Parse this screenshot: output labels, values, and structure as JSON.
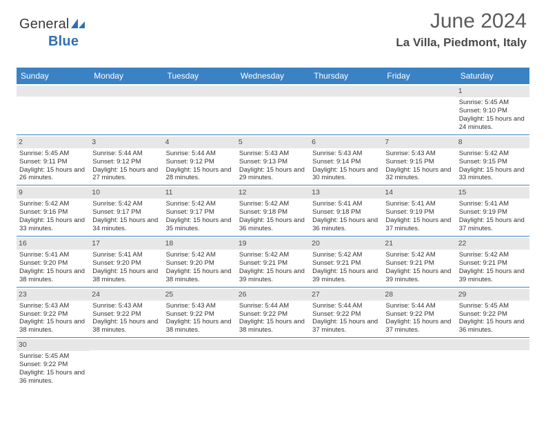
{
  "logo": {
    "textA": "General",
    "textB": "Blue"
  },
  "title": "June 2024",
  "location": "La Villa, Piedmont, Italy",
  "colors": {
    "headerBlue": "#3a82c4",
    "greyBar": "#e7e7e7",
    "text": "#333333",
    "titleGrey": "#5a5a5a"
  },
  "dayNames": [
    "Sunday",
    "Monday",
    "Tuesday",
    "Wednesday",
    "Thursday",
    "Friday",
    "Saturday"
  ],
  "weeks": [
    [
      null,
      null,
      null,
      null,
      null,
      null,
      {
        "n": "1",
        "sr": "5:45 AM",
        "ss": "9:10 PM",
        "dl": "15 hours and 24 minutes."
      }
    ],
    [
      {
        "n": "2",
        "sr": "5:45 AM",
        "ss": "9:11 PM",
        "dl": "15 hours and 26 minutes."
      },
      {
        "n": "3",
        "sr": "5:44 AM",
        "ss": "9:12 PM",
        "dl": "15 hours and 27 minutes."
      },
      {
        "n": "4",
        "sr": "5:44 AM",
        "ss": "9:12 PM",
        "dl": "15 hours and 28 minutes."
      },
      {
        "n": "5",
        "sr": "5:43 AM",
        "ss": "9:13 PM",
        "dl": "15 hours and 29 minutes."
      },
      {
        "n": "6",
        "sr": "5:43 AM",
        "ss": "9:14 PM",
        "dl": "15 hours and 30 minutes."
      },
      {
        "n": "7",
        "sr": "5:43 AM",
        "ss": "9:15 PM",
        "dl": "15 hours and 32 minutes."
      },
      {
        "n": "8",
        "sr": "5:42 AM",
        "ss": "9:15 PM",
        "dl": "15 hours and 33 minutes."
      }
    ],
    [
      {
        "n": "9",
        "sr": "5:42 AM",
        "ss": "9:16 PM",
        "dl": "15 hours and 33 minutes."
      },
      {
        "n": "10",
        "sr": "5:42 AM",
        "ss": "9:17 PM",
        "dl": "15 hours and 34 minutes."
      },
      {
        "n": "11",
        "sr": "5:42 AM",
        "ss": "9:17 PM",
        "dl": "15 hours and 35 minutes."
      },
      {
        "n": "12",
        "sr": "5:42 AM",
        "ss": "9:18 PM",
        "dl": "15 hours and 36 minutes."
      },
      {
        "n": "13",
        "sr": "5:41 AM",
        "ss": "9:18 PM",
        "dl": "15 hours and 36 minutes."
      },
      {
        "n": "14",
        "sr": "5:41 AM",
        "ss": "9:19 PM",
        "dl": "15 hours and 37 minutes."
      },
      {
        "n": "15",
        "sr": "5:41 AM",
        "ss": "9:19 PM",
        "dl": "15 hours and 37 minutes."
      }
    ],
    [
      {
        "n": "16",
        "sr": "5:41 AM",
        "ss": "9:20 PM",
        "dl": "15 hours and 38 minutes."
      },
      {
        "n": "17",
        "sr": "5:41 AM",
        "ss": "9:20 PM",
        "dl": "15 hours and 38 minutes."
      },
      {
        "n": "18",
        "sr": "5:42 AM",
        "ss": "9:20 PM",
        "dl": "15 hours and 38 minutes."
      },
      {
        "n": "19",
        "sr": "5:42 AM",
        "ss": "9:21 PM",
        "dl": "15 hours and 39 minutes."
      },
      {
        "n": "20",
        "sr": "5:42 AM",
        "ss": "9:21 PM",
        "dl": "15 hours and 39 minutes."
      },
      {
        "n": "21",
        "sr": "5:42 AM",
        "ss": "9:21 PM",
        "dl": "15 hours and 39 minutes."
      },
      {
        "n": "22",
        "sr": "5:42 AM",
        "ss": "9:21 PM",
        "dl": "15 hours and 39 minutes."
      }
    ],
    [
      {
        "n": "23",
        "sr": "5:43 AM",
        "ss": "9:22 PM",
        "dl": "15 hours and 38 minutes."
      },
      {
        "n": "24",
        "sr": "5:43 AM",
        "ss": "9:22 PM",
        "dl": "15 hours and 38 minutes."
      },
      {
        "n": "25",
        "sr": "5:43 AM",
        "ss": "9:22 PM",
        "dl": "15 hours and 38 minutes."
      },
      {
        "n": "26",
        "sr": "5:44 AM",
        "ss": "9:22 PM",
        "dl": "15 hours and 38 minutes."
      },
      {
        "n": "27",
        "sr": "5:44 AM",
        "ss": "9:22 PM",
        "dl": "15 hours and 37 minutes."
      },
      {
        "n": "28",
        "sr": "5:44 AM",
        "ss": "9:22 PM",
        "dl": "15 hours and 37 minutes."
      },
      {
        "n": "29",
        "sr": "5:45 AM",
        "ss": "9:22 PM",
        "dl": "15 hours and 36 minutes."
      }
    ],
    [
      {
        "n": "30",
        "sr": "5:45 AM",
        "ss": "9:22 PM",
        "dl": "15 hours and 36 minutes."
      },
      null,
      null,
      null,
      null,
      null,
      null
    ]
  ],
  "labels": {
    "sunrise": "Sunrise:",
    "sunset": "Sunset:",
    "daylight": "Daylight:"
  }
}
